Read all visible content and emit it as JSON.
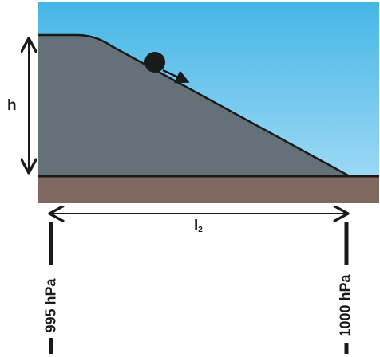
{
  "labels": {
    "height": "h",
    "length_main": "l",
    "length_sub": "2",
    "pressure_left": "995 hPa",
    "pressure_right": "1000 hPa"
  },
  "colors": {
    "sky_top": "#45b6e6",
    "sky_bottom": "#9cd8f5",
    "hill": "#647178",
    "ground": "#7e6860",
    "ink": "#1a1a1a"
  }
}
